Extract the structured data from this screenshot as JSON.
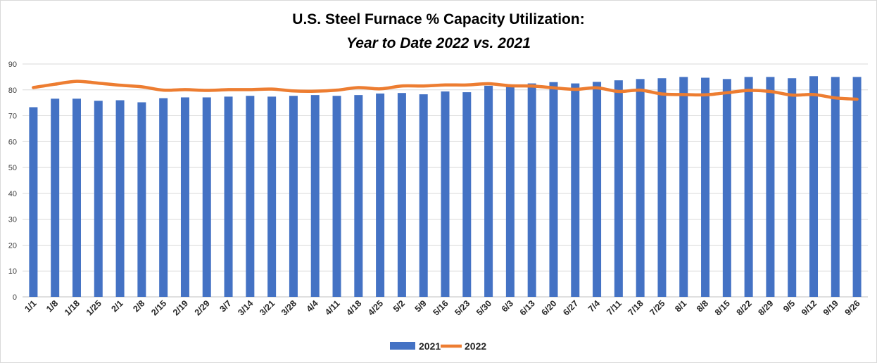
{
  "chart_data": {
    "type": "bar",
    "title": "U.S. Steel Furnace % Capacity Utilization:",
    "subtitle": "Year to Date 2022 vs. 2021",
    "ylim": [
      0,
      90
    ],
    "yticks": [
      0,
      10,
      20,
      30,
      40,
      50,
      60,
      70,
      80,
      90
    ],
    "grid": true,
    "legend_position": "bottom",
    "categories": [
      "1/1",
      "1/8",
      "1/18",
      "1/25",
      "2/1",
      "2/8",
      "2/15",
      "2/19",
      "2/29",
      "3/7",
      "3/14",
      "3/21",
      "3/28",
      "4/4",
      "4/11",
      "4/18",
      "4/25",
      "5/2",
      "5/9",
      "5/16",
      "5/23",
      "5/30",
      "6/3",
      "6/13",
      "6/20",
      "6/27",
      "7/4",
      "7/11",
      "7/18",
      "7/25",
      "8/1",
      "8/8",
      "8/15",
      "8/22",
      "8/29",
      "9/5",
      "9/12",
      "9/19",
      "9/26"
    ],
    "series": [
      {
        "name": "2021",
        "kind": "bar",
        "color": "#4472c4",
        "values": [
          73.3,
          76.6,
          76.6,
          75.8,
          76.0,
          75.2,
          76.8,
          77.1,
          77.1,
          77.4,
          77.7,
          77.4,
          77.7,
          78.0,
          77.7,
          78.0,
          78.6,
          78.8,
          78.3,
          79.4,
          79.1,
          81.6,
          81.3,
          82.5,
          83.0,
          82.5,
          83.1,
          83.7,
          84.2,
          84.5,
          85.0,
          84.7,
          84.2,
          85.0,
          85.0,
          84.5,
          85.3,
          85.0,
          85.0
        ]
      },
      {
        "name": "2022",
        "kind": "line",
        "color": "#ed7d31",
        "values": [
          80.9,
          82.2,
          83.3,
          82.6,
          81.8,
          81.2,
          79.9,
          80.1,
          79.8,
          80.1,
          80.1,
          80.3,
          79.6,
          79.5,
          79.9,
          80.9,
          80.4,
          81.5,
          81.5,
          81.9,
          81.9,
          82.4,
          81.6,
          81.5,
          80.8,
          80.2,
          80.8,
          79.4,
          79.9,
          78.4,
          78.2,
          78.1,
          78.9,
          79.8,
          79.4,
          78.0,
          78.2,
          76.9,
          76.4
        ]
      }
    ]
  }
}
